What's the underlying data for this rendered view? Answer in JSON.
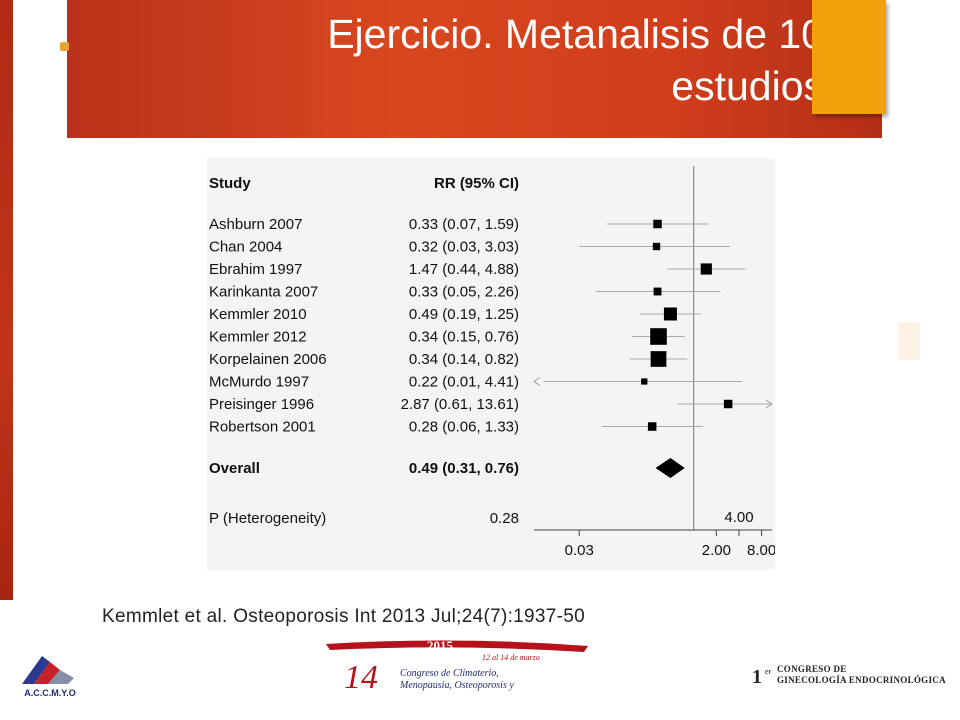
{
  "slide": {
    "title": "Ejercicio. Metanalisis de 10 estudios",
    "citation": "Kemmlet et al. Osteoporosis Int 2013 Jul;24(7):1937-50",
    "colors": {
      "banner": "#cf3d1b",
      "accent": "#f3a20e",
      "bullet": "#e8a23a"
    }
  },
  "logos": {
    "left_text": "A.C.C.M.Y.O",
    "center_year": "2015",
    "center_date": "12 al 14 de marzo",
    "center_num": "14",
    "center_line1": "Congreso de Climaterio,",
    "center_line2": "Menopausia, Osteoporosis y",
    "right_num": "1",
    "right_sup": "er",
    "right_line1": "CONGRESO DE",
    "right_line2": "GINECOLOGÍA ENDOCRINOLÓGICA"
  },
  "chart_data": {
    "type": "forest",
    "header_study": "Study",
    "header_rr": "RR (95% CI)",
    "scale": "log",
    "xlim": [
      0.0075,
      11
    ],
    "reference_line": 1.0,
    "xticks": [
      {
        "value": 0.03,
        "label": "0.03"
      },
      {
        "value": 2.0,
        "label": "2.00"
      },
      {
        "value": 4.0,
        "label": "4.00"
      },
      {
        "value": 8.0,
        "label": "8.00"
      }
    ],
    "studies": [
      {
        "name": "Ashburn 2007",
        "rr_text": "0.33 (0.07, 1.59)",
        "rr": 0.33,
        "lo": 0.07,
        "hi": 1.59,
        "weight": 1.0
      },
      {
        "name": "Chan 2004",
        "rr_text": "0.32 (0.03, 3.03)",
        "rr": 0.32,
        "lo": 0.03,
        "hi": 3.03,
        "weight": 0.75
      },
      {
        "name": "Ebrahim 1997",
        "rr_text": "1.47 (0.44, 4.88)",
        "rr": 1.47,
        "lo": 0.44,
        "hi": 4.88,
        "weight": 1.6
      },
      {
        "name": "Karinkanta 2007",
        "rr_text": "0.33 (0.05, 2.26)",
        "rr": 0.33,
        "lo": 0.05,
        "hi": 2.26,
        "weight": 0.85
      },
      {
        "name": "Kemmler 2010",
        "rr_text": "0.49 (0.19, 1.25)",
        "rr": 0.49,
        "lo": 0.19,
        "hi": 1.25,
        "weight": 2.0
      },
      {
        "name": "Kemmler 2012",
        "rr_text": "0.34 (0.15, 0.76)",
        "rr": 0.34,
        "lo": 0.15,
        "hi": 0.76,
        "weight": 2.8
      },
      {
        "name": "Korpelainen 2006",
        "rr_text": "0.34 (0.14, 0.82)",
        "rr": 0.34,
        "lo": 0.14,
        "hi": 0.82,
        "weight": 2.6
      },
      {
        "name": "McMurdo 1997",
        "rr_text": "0.22 (0.01, 4.41)",
        "rr": 0.22,
        "lo": 0.01,
        "hi": 4.41,
        "weight": 0.5,
        "arrow_left": true
      },
      {
        "name": "Preisinger 1996",
        "rr_text": "2.87 (0.61, 13.61)",
        "rr": 2.87,
        "lo": 0.61,
        "hi": 13.61,
        "weight": 1.0,
        "arrow_right": true
      },
      {
        "name": "Robertson 2001",
        "rr_text": "0.28 (0.06, 1.33)",
        "rr": 0.28,
        "lo": 0.06,
        "hi": 1.33,
        "weight": 1.0
      }
    ],
    "overall": {
      "name": "Overall",
      "rr_text": "0.49 (0.31, 0.76)",
      "rr": 0.49,
      "lo": 0.31,
      "hi": 0.76
    },
    "heterogeneity": {
      "label": "P (Heterogeneity)",
      "value": "0.28"
    }
  }
}
